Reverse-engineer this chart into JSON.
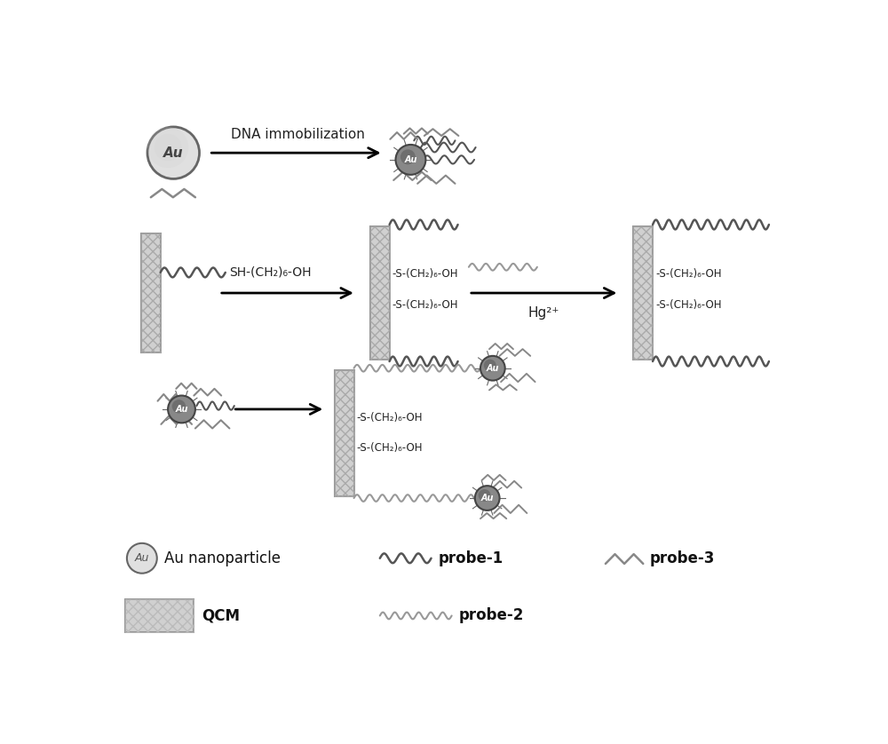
{
  "bg_color": "#ffffff",
  "dna_immobilization_text": "DNA immobilization",
  "sh_text": "SH-(CH₂)₆-OH",
  "hg_text": "Hg²⁺",
  "s_ch2_oh_top1": "-S-(CH₂)₆-OH",
  "s_ch2_oh_top2": "-S-(CH₂)₆-OH",
  "s_ch2_oh_right1": "-S-(CH₂)₆-OH",
  "s_ch2_oh_right2": "-S-(CH₂)₆-OH",
  "s_ch2_oh_bot1": "-S-(CH₂)₆-OH",
  "s_ch2_oh_bot2": "-S-(CH₂)₆-OH",
  "legend_au_nanoparticle": "Au nanoparticle",
  "legend_probe1": "probe-1",
  "legend_probe2": "probe-2",
  "legend_probe3": "probe-3",
  "legend_qcm": "QCM",
  "qcm_face": "#d0d0d0",
  "qcm_edge": "#999999",
  "probe1_color": "#555555",
  "probe2_color": "#999999",
  "probe3_color": "#888888",
  "au_face": "#b0b0b0",
  "au_edge": "#666666",
  "au_plain_face": "#e0e0e0",
  "text_color": "#222222"
}
